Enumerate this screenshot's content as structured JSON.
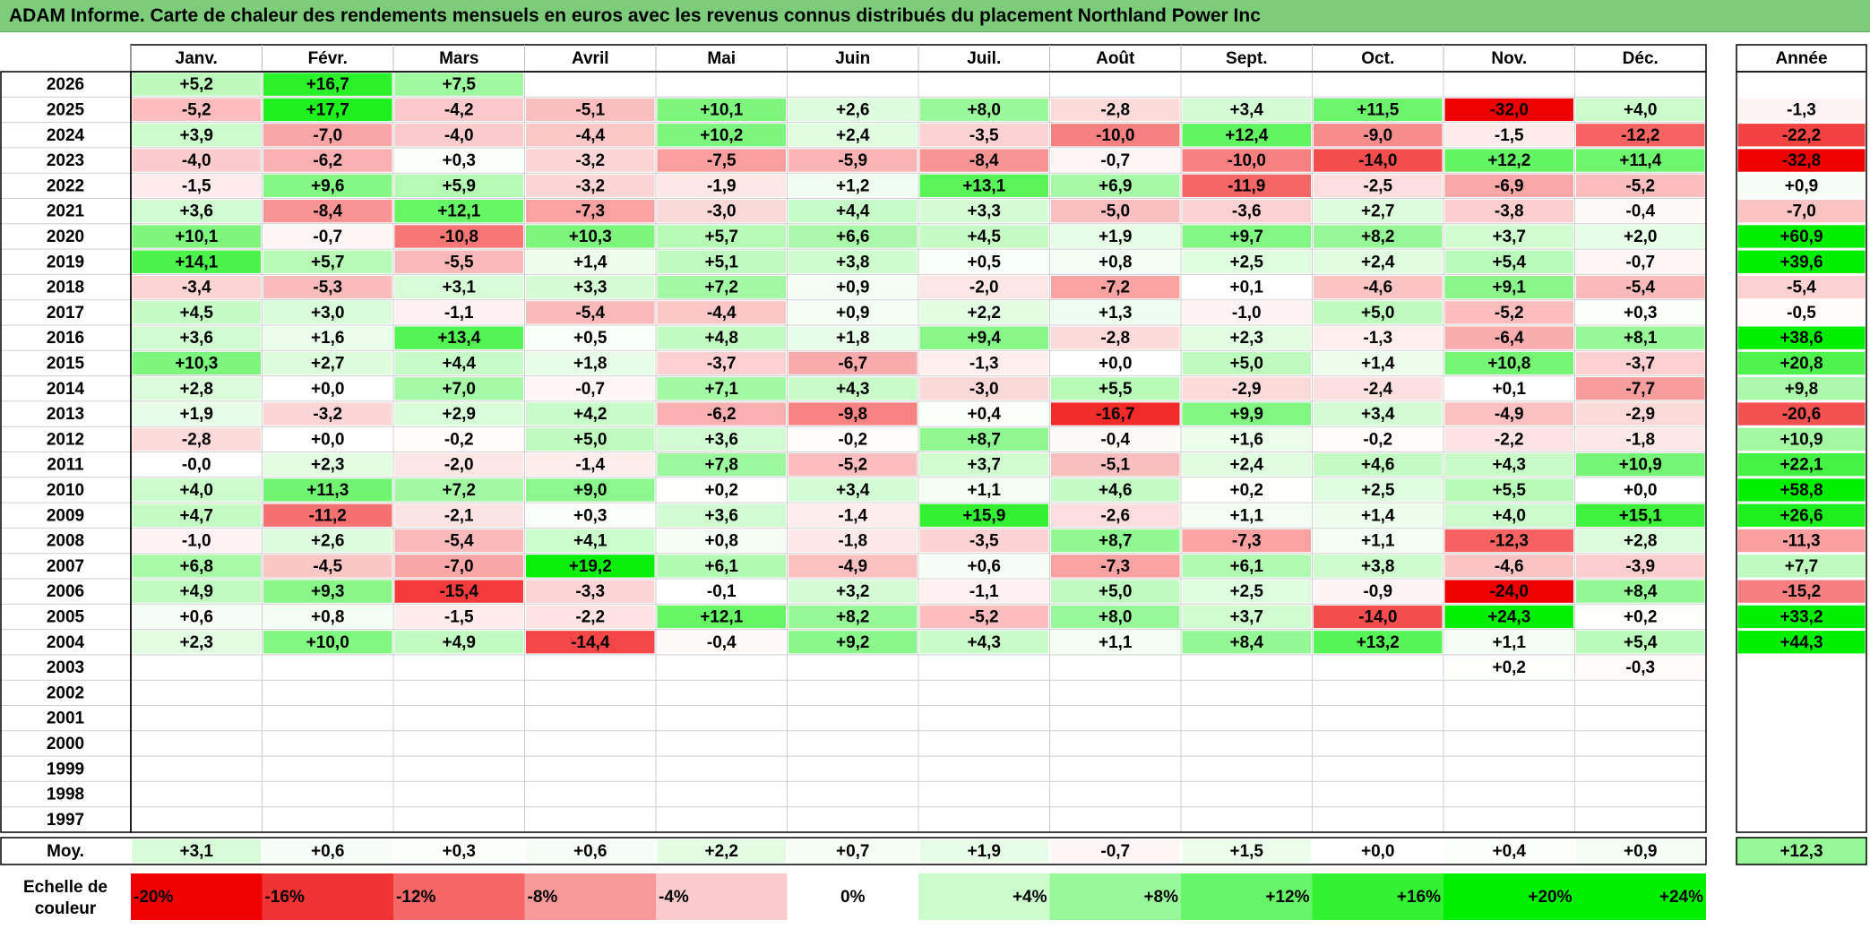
{
  "title": "ADAM Informe. Carte de chaleur des rendements mensuels en euros avec les revenus connus distribués du placement Northland Power Inc",
  "chart_data": {
    "type": "heatmap",
    "months": [
      "Janv.",
      "Févr.",
      "Mars",
      "Avril",
      "Mai",
      "Juin",
      "Juil.",
      "Août",
      "Sept.",
      "Oct.",
      "Nov.",
      "Déc."
    ],
    "year_header": "Année",
    "rows": [
      {
        "year": "2026",
        "values": [
          "+5,2",
          "+16,7",
          "+7,5",
          null,
          null,
          null,
          null,
          null,
          null,
          null,
          null,
          null
        ],
        "annual": null
      },
      {
        "year": "2025",
        "values": [
          "-5,2",
          "+17,7",
          "-4,2",
          "-5,1",
          "+10,1",
          "+2,6",
          "+8,0",
          "-2,8",
          "+3,4",
          "+11,5",
          "-32,0",
          "+4,0"
        ],
        "annual": "-1,3"
      },
      {
        "year": "2024",
        "values": [
          "+3,9",
          "-7,0",
          "-4,0",
          "-4,4",
          "+10,2",
          "+2,4",
          "-3,5",
          "-10,0",
          "+12,4",
          "-9,0",
          "-1,5",
          "-12,2"
        ],
        "annual": "-22,2"
      },
      {
        "year": "2023",
        "values": [
          "-4,0",
          "-6,2",
          "+0,3",
          "-3,2",
          "-7,5",
          "-5,9",
          "-8,4",
          "-0,7",
          "-10,0",
          "-14,0",
          "+12,2",
          "+11,4"
        ],
        "annual": "-32,8"
      },
      {
        "year": "2022",
        "values": [
          "-1,5",
          "+9,6",
          "+5,9",
          "-3,2",
          "-1,9",
          "+1,2",
          "+13,1",
          "+6,9",
          "-11,9",
          "-2,5",
          "-6,9",
          "-5,2"
        ],
        "annual": "+0,9"
      },
      {
        "year": "2021",
        "values": [
          "+3,6",
          "-8,4",
          "+12,1",
          "-7,3",
          "-3,0",
          "+4,4",
          "+3,3",
          "-5,0",
          "-3,6",
          "+2,7",
          "-3,8",
          "-0,4"
        ],
        "annual": "-7,0"
      },
      {
        "year": "2020",
        "values": [
          "+10,1",
          "-0,7",
          "-10,8",
          "+10,3",
          "+5,7",
          "+6,6",
          "+4,5",
          "+1,9",
          "+9,7",
          "+8,2",
          "+3,7",
          "+2,0"
        ],
        "annual": "+60,9"
      },
      {
        "year": "2019",
        "values": [
          "+14,1",
          "+5,7",
          "-5,5",
          "+1,4",
          "+5,1",
          "+3,8",
          "+0,5",
          "+0,8",
          "+2,5",
          "+2,4",
          "+5,4",
          "-0,7"
        ],
        "annual": "+39,6"
      },
      {
        "year": "2018",
        "values": [
          "-3,4",
          "-5,3",
          "+3,1",
          "+3,3",
          "+7,2",
          "+0,9",
          "-2,0",
          "-7,2",
          "+0,1",
          "-4,6",
          "+9,1",
          "-5,4"
        ],
        "annual": "-5,4"
      },
      {
        "year": "2017",
        "values": [
          "+4,5",
          "+3,0",
          "-1,1",
          "-5,4",
          "-4,4",
          "+0,9",
          "+2,2",
          "+1,3",
          "-1,0",
          "+5,0",
          "-5,2",
          "+0,3"
        ],
        "annual": "-0,5"
      },
      {
        "year": "2016",
        "values": [
          "+3,6",
          "+1,6",
          "+13,4",
          "+0,5",
          "+4,8",
          "+1,8",
          "+9,4",
          "-2,8",
          "+2,3",
          "-1,3",
          "-6,4",
          "+8,1"
        ],
        "annual": "+38,6"
      },
      {
        "year": "2015",
        "values": [
          "+10,3",
          "+2,7",
          "+4,4",
          "+1,8",
          "-3,7",
          "-6,7",
          "-1,3",
          "+0,0",
          "+5,0",
          "+1,4",
          "+10,8",
          "-3,7"
        ],
        "annual": "+20,8"
      },
      {
        "year": "2014",
        "values": [
          "+2,8",
          "+0,0",
          "+7,0",
          "-0,7",
          "+7,1",
          "+4,3",
          "-3,0",
          "+5,5",
          "-2,9",
          "-2,4",
          "+0,1",
          "-7,7"
        ],
        "annual": "+9,8"
      },
      {
        "year": "2013",
        "values": [
          "+1,9",
          "-3,2",
          "+2,9",
          "+4,2",
          "-6,2",
          "-9,8",
          "+0,4",
          "-16,7",
          "+9,9",
          "+3,4",
          "-4,9",
          "-2,9"
        ],
        "annual": "-20,6"
      },
      {
        "year": "2012",
        "values": [
          "-2,8",
          "+0,0",
          "-0,2",
          "+5,0",
          "+3,6",
          "-0,2",
          "+8,7",
          "-0,4",
          "+1,6",
          "-0,2",
          "-2,2",
          "-1,8"
        ],
        "annual": "+10,9"
      },
      {
        "year": "2011",
        "values": [
          "-0,0",
          "+2,3",
          "-2,0",
          "-1,4",
          "+7,8",
          "-5,2",
          "+3,7",
          "-5,1",
          "+2,4",
          "+4,6",
          "+4,3",
          "+10,9"
        ],
        "annual": "+22,1"
      },
      {
        "year": "2010",
        "values": [
          "+4,0",
          "+11,3",
          "+7,2",
          "+9,0",
          "+0,2",
          "+3,4",
          "+1,1",
          "+4,6",
          "+0,2",
          "+2,5",
          "+5,5",
          "+0,0"
        ],
        "annual": "+58,8"
      },
      {
        "year": "2009",
        "values": [
          "+4,7",
          "-11,2",
          "-2,1",
          "+0,3",
          "+3,6",
          "-1,4",
          "+15,9",
          "-2,6",
          "+1,1",
          "+1,4",
          "+4,0",
          "+15,1"
        ],
        "annual": "+26,6"
      },
      {
        "year": "2008",
        "values": [
          "-1,0",
          "+2,6",
          "-5,4",
          "+4,1",
          "+0,8",
          "-1,8",
          "-3,5",
          "+8,7",
          "-7,3",
          "+1,1",
          "-12,3",
          "+2,8"
        ],
        "annual": "-11,3"
      },
      {
        "year": "2007",
        "values": [
          "+6,8",
          "-4,5",
          "-7,0",
          "+19,2",
          "+6,1",
          "-4,9",
          "+0,6",
          "-7,3",
          "+6,1",
          "+3,8",
          "-4,6",
          "-3,9"
        ],
        "annual": "+7,7"
      },
      {
        "year": "2006",
        "values": [
          "+4,9",
          "+9,3",
          "-15,4",
          "-3,3",
          "-0,1",
          "+3,2",
          "-1,1",
          "+5,0",
          "+2,5",
          "-0,9",
          "-24,0",
          "+8,4"
        ],
        "annual": "-15,2"
      },
      {
        "year": "2005",
        "values": [
          "+0,6",
          "+0,8",
          "-1,5",
          "-2,2",
          "+12,1",
          "+8,2",
          "-5,2",
          "+8,0",
          "+3,7",
          "-14,0",
          "+24,3",
          "+0,2"
        ],
        "annual": "+33,2"
      },
      {
        "year": "2004",
        "values": [
          "+2,3",
          "+10,0",
          "+4,9",
          "-14,4",
          "-0,4",
          "+9,2",
          "+4,3",
          "+1,1",
          "+8,4",
          "+13,2",
          "+1,1",
          "+5,4"
        ],
        "annual": "+44,3"
      },
      {
        "year": "2003",
        "values": [
          null,
          null,
          null,
          null,
          null,
          null,
          null,
          null,
          null,
          null,
          "+0,2",
          "-0,3"
        ],
        "annual": null
      },
      {
        "year": "2002",
        "values": [
          null,
          null,
          null,
          null,
          null,
          null,
          null,
          null,
          null,
          null,
          null,
          null
        ],
        "annual": null
      },
      {
        "year": "2001",
        "values": [
          null,
          null,
          null,
          null,
          null,
          null,
          null,
          null,
          null,
          null,
          null,
          null
        ],
        "annual": null
      },
      {
        "year": "2000",
        "values": [
          null,
          null,
          null,
          null,
          null,
          null,
          null,
          null,
          null,
          null,
          null,
          null
        ],
        "annual": null
      },
      {
        "year": "1999",
        "values": [
          null,
          null,
          null,
          null,
          null,
          null,
          null,
          null,
          null,
          null,
          null,
          null
        ],
        "annual": null
      },
      {
        "year": "1998",
        "values": [
          null,
          null,
          null,
          null,
          null,
          null,
          null,
          null,
          null,
          null,
          null,
          null
        ],
        "annual": null
      },
      {
        "year": "1997",
        "values": [
          null,
          null,
          null,
          null,
          null,
          null,
          null,
          null,
          null,
          null,
          null,
          null
        ],
        "annual": null
      }
    ],
    "average": {
      "label": "Moy.",
      "values": [
        "+3,1",
        "+0,6",
        "+0,3",
        "+0,6",
        "+2,2",
        "+0,7",
        "+1,9",
        "-0,7",
        "+1,5",
        "+0,0",
        "+0,4",
        "+0,9"
      ],
      "annual": "+12,3"
    },
    "color_scale": {
      "label_line1": "Echelle de",
      "label_line2": "couleur",
      "stops": [
        "-20%",
        "-16%",
        "-12%",
        "-8%",
        "-4%",
        "0%",
        "+4%",
        "+8%",
        "+12%",
        "+16%",
        "+20%",
        "+24%"
      ]
    },
    "colors": {
      "negative_max": "#ee0000",
      "neutral": "#ffffff",
      "positive_max": "#00ee00",
      "title_bar": "#7ccc7c"
    }
  }
}
